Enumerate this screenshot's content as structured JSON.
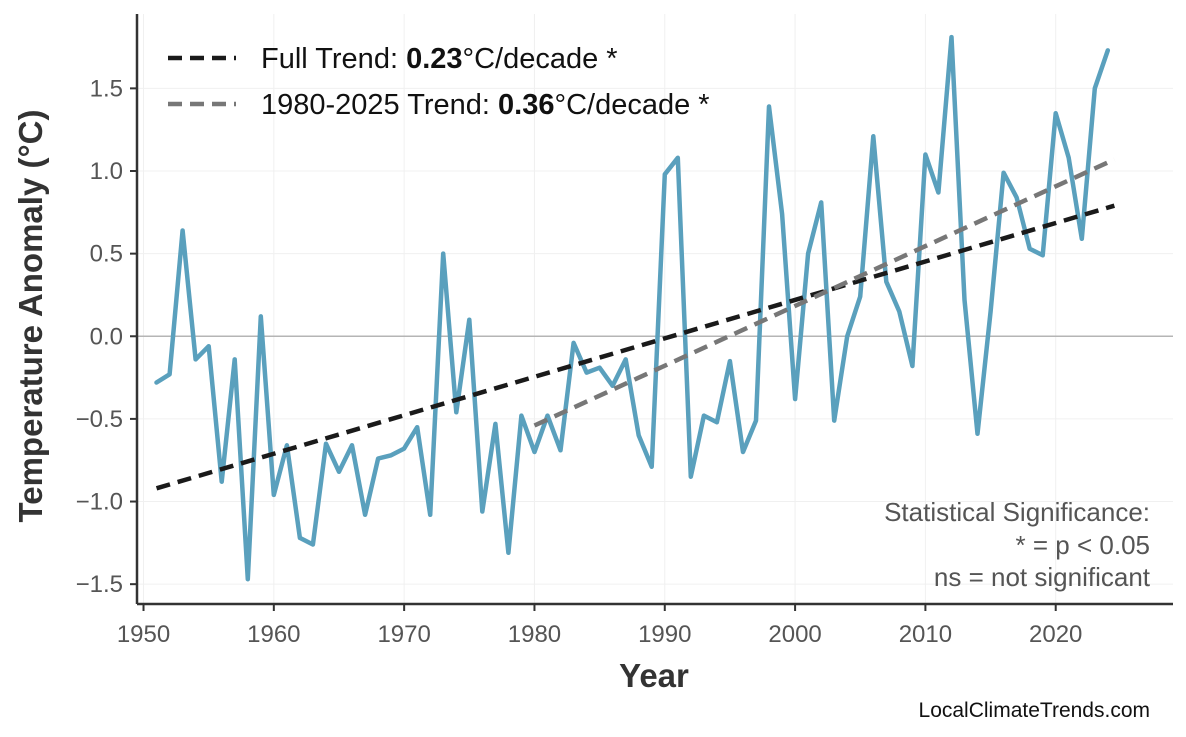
{
  "chart_data": {
    "type": "line",
    "xlabel": "Year",
    "ylabel": "Temperature Anomaly (°C)",
    "xlim": [
      1949.5,
      2029
    ],
    "ylim": [
      -1.62,
      1.95
    ],
    "x_ticks": [
      1950,
      1960,
      1970,
      1980,
      1990,
      2000,
      2010,
      2020
    ],
    "y_ticks": [
      -1.5,
      -1.0,
      -0.5,
      0.0,
      0.5,
      1.0,
      1.5
    ],
    "y_tick_labels": [
      "−1.5",
      "−1.0",
      "−0.5",
      "0.0",
      "0.5",
      "1.0",
      "1.5"
    ],
    "grid": true,
    "zero_line": true,
    "legend_position": "top-left",
    "colors": {
      "series": "#5aa0bd",
      "full_trend": "#1a1a1a",
      "recent_trend": "#777777"
    },
    "series": [
      {
        "x": [
          1951,
          1952,
          1953,
          1954,
          1955,
          1956,
          1957,
          1958,
          1959,
          1960,
          1961,
          1962,
          1963,
          1964,
          1965,
          1966,
          1967,
          1968,
          1969,
          1970,
          1971,
          1972,
          1973,
          1974,
          1975,
          1976,
          1977,
          1978,
          1979,
          1980,
          1981,
          1982,
          1983,
          1984,
          1985,
          1986,
          1987,
          1988,
          1989,
          1990,
          1991,
          1992,
          1993,
          1994,
          1995,
          1996,
          1997,
          1998,
          1999,
          2000,
          2001,
          2002,
          2003,
          2004,
          2005,
          2006,
          2007,
          2008,
          2009,
          2010,
          2011,
          2012,
          2013,
          2014,
          2015,
          2016,
          2017,
          2018,
          2019,
          2020,
          2021,
          2022,
          2023,
          2024
        ],
        "values": [
          -0.28,
          -0.23,
          0.64,
          -0.14,
          -0.06,
          -0.88,
          -0.14,
          -1.47,
          0.12,
          -0.96,
          -0.66,
          -1.22,
          -1.26,
          -0.65,
          -0.82,
          -0.66,
          -1.08,
          -0.74,
          -0.72,
          -0.68,
          -0.55,
          -1.08,
          0.5,
          -0.46,
          0.1,
          -1.06,
          -0.53,
          -1.31,
          -0.48,
          -0.7,
          -0.48,
          -0.69,
          -0.04,
          -0.22,
          -0.19,
          -0.3,
          -0.14,
          -0.6,
          -0.79,
          0.98,
          1.08,
          -0.85,
          -0.48,
          -0.52,
          -0.15,
          -0.7,
          -0.51,
          1.39,
          0.74,
          -0.38,
          0.5,
          0.81,
          -0.51,
          0.0,
          0.24,
          1.21,
          0.33,
          0.15,
          -0.18,
          1.1,
          0.87,
          1.81,
          0.22,
          -0.59,
          0.15,
          0.99,
          0.84,
          0.53,
          0.49,
          1.35,
          1.08,
          0.59,
          1.5,
          1.73
        ]
      }
    ],
    "trend_lines": [
      {
        "x": [
          1951,
          2024.5
        ],
        "y": [
          -0.92,
          0.79
        ]
      },
      {
        "x": [
          1980,
          2024.5
        ],
        "y": [
          -0.54,
          1.07
        ]
      }
    ],
    "legend": [
      {
        "label_pre": "Full Trend: ",
        "label_value": "0.23",
        "label_post": "°C/decade *"
      },
      {
        "label_pre": "1980-2025 Trend: ",
        "label_value": "0.36",
        "label_post": "°C/decade *"
      }
    ],
    "annotation": {
      "line1": "Statistical Significance:",
      "line2": "* = p < 0.05",
      "line3": "ns = not significant"
    },
    "credit": "LocalClimateTrends.com"
  }
}
